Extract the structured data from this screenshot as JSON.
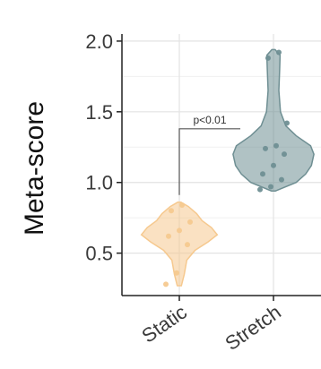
{
  "chart_data": {
    "type": "violin",
    "ylabel": "Meta-score",
    "ylim": [
      0.2,
      2.05
    ],
    "yticks": [
      0.5,
      1.0,
      1.5,
      2.0
    ],
    "ytick_labels": [
      "0.5",
      "1.0",
      "1.5",
      "2.0"
    ],
    "categories": [
      "Static",
      "Stretch"
    ],
    "grid": true,
    "colors": {
      "Static": "#f6c98f",
      "Stretch": "#6f8f93"
    },
    "series": [
      {
        "category": "Static",
        "points": [
          0.28,
          0.36,
          0.56,
          0.62,
          0.66,
          0.72,
          0.8,
          0.84
        ],
        "profile": [
          [
            0.27,
            0.05
          ],
          [
            0.35,
            0.12
          ],
          [
            0.45,
            0.18
          ],
          [
            0.52,
            0.38
          ],
          [
            0.58,
            0.7
          ],
          [
            0.63,
            0.92
          ],
          [
            0.68,
            0.78
          ],
          [
            0.73,
            0.55
          ],
          [
            0.78,
            0.42
          ],
          [
            0.83,
            0.22
          ],
          [
            0.86,
            0.04
          ]
        ]
      },
      {
        "category": "Stretch",
        "points": [
          0.95,
          0.97,
          1.02,
          1.06,
          1.12,
          1.2,
          1.24,
          1.26,
          1.42,
          1.88,
          1.92
        ],
        "profile": [
          [
            0.94,
            0.05
          ],
          [
            1.0,
            0.55
          ],
          [
            1.06,
            0.78
          ],
          [
            1.12,
            0.92
          ],
          [
            1.2,
            0.98
          ],
          [
            1.26,
            0.9
          ],
          [
            1.33,
            0.55
          ],
          [
            1.4,
            0.3
          ],
          [
            1.5,
            0.17
          ],
          [
            1.65,
            0.13
          ],
          [
            1.8,
            0.15
          ],
          [
            1.9,
            0.16
          ],
          [
            1.94,
            0.04
          ]
        ]
      }
    ],
    "annotation": {
      "text": "p<0.01",
      "y": 1.38
    }
  }
}
